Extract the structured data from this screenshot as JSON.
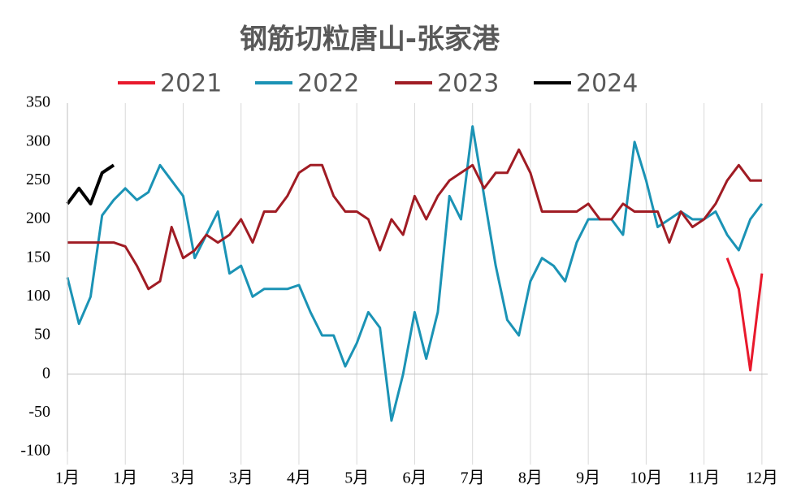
{
  "chart_data": {
    "type": "line",
    "title": "钢筋切粒唐山-张家港",
    "x": [
      0,
      0.2,
      0.4,
      0.6,
      0.8,
      1,
      1.2,
      1.4,
      1.6,
      1.8,
      2,
      2.2,
      2.4,
      2.6,
      2.8,
      3,
      3.2,
      3.4,
      3.6,
      3.8,
      4,
      4.2,
      4.4,
      4.6,
      4.8,
      5,
      5.2,
      5.4,
      5.6,
      5.8,
      6,
      6.2,
      6.4,
      6.6,
      6.8,
      7,
      7.2,
      7.4,
      7.6,
      7.8,
      8,
      8.2,
      8.4,
      8.6,
      8.8,
      9,
      9.2,
      9.4,
      9.6,
      9.8,
      10,
      10.2,
      10.4,
      10.6,
      10.8,
      11,
      11.2,
      11.4,
      11.6,
      11.8,
      12
    ],
    "xlim": [
      0,
      12.1
    ],
    "xticks": [
      {
        "value": 0,
        "label": "1月"
      },
      {
        "value": 1,
        "label": "1月"
      },
      {
        "value": 2,
        "label": "3月"
      },
      {
        "value": 3,
        "label": "3月"
      },
      {
        "value": 4,
        "label": "4月"
      },
      {
        "value": 5,
        "label": "5月"
      },
      {
        "value": 6,
        "label": "6月"
      },
      {
        "value": 7,
        "label": "7月"
      },
      {
        "value": 8,
        "label": "8月"
      },
      {
        "value": 9,
        "label": "9月"
      },
      {
        "value": 10,
        "label": "10月"
      },
      {
        "value": 11,
        "label": "11月"
      },
      {
        "value": 12,
        "label": "12月"
      }
    ],
    "ylim": [
      -100,
      350
    ],
    "yticks": [
      -100,
      -50,
      0,
      50,
      100,
      150,
      200,
      250,
      300,
      350
    ],
    "grid": true,
    "series": [
      {
        "name": "2021",
        "color": "#e8192c",
        "values": [
          null,
          null,
          null,
          null,
          null,
          null,
          null,
          null,
          null,
          null,
          null,
          null,
          null,
          null,
          null,
          null,
          null,
          null,
          null,
          null,
          null,
          null,
          null,
          null,
          null,
          null,
          null,
          null,
          null,
          null,
          null,
          null,
          null,
          null,
          null,
          null,
          null,
          null,
          null,
          null,
          null,
          null,
          null,
          null,
          null,
          null,
          null,
          null,
          null,
          null,
          null,
          null,
          null,
          null,
          null,
          null,
          null,
          150,
          110,
          5,
          130
        ]
      },
      {
        "name": "2022",
        "color": "#1b93b5",
        "values": [
          125,
          65,
          100,
          205,
          225,
          240,
          225,
          235,
          270,
          250,
          230,
          150,
          180,
          210,
          130,
          140,
          100,
          110,
          110,
          110,
          115,
          80,
          50,
          50,
          10,
          40,
          80,
          60,
          -60,
          0,
          80,
          20,
          80,
          230,
          200,
          320,
          230,
          140,
          70,
          50,
          120,
          150,
          140,
          120,
          170,
          200,
          200,
          200,
          180,
          300,
          250,
          190,
          200,
          210,
          200,
          200,
          210,
          180,
          160,
          200,
          220
        ]
      },
      {
        "name": "2023",
        "color": "#a01c24",
        "values": [
          170,
          170,
          170,
          170,
          170,
          165,
          140,
          110,
          120,
          190,
          150,
          160,
          180,
          170,
          180,
          200,
          170,
          210,
          210,
          230,
          260,
          270,
          270,
          230,
          210,
          210,
          200,
          160,
          200,
          180,
          230,
          200,
          230,
          250,
          260,
          270,
          240,
          260,
          260,
          290,
          260,
          210,
          210,
          210,
          210,
          220,
          200,
          200,
          220,
          210,
          210,
          210,
          170,
          210,
          190,
          200,
          220,
          250,
          270,
          250,
          250
        ]
      },
      {
        "name": "2024",
        "color": "#000000",
        "values": [
          220,
          240,
          220,
          260,
          270,
          null,
          null,
          null,
          null,
          null,
          null,
          null,
          null,
          null,
          null,
          null,
          null,
          null,
          null,
          null,
          null,
          null,
          null,
          null,
          null,
          null,
          null,
          null,
          null,
          null,
          null,
          null,
          null,
          null,
          null,
          null,
          null,
          null,
          null,
          null,
          null,
          null,
          null,
          null,
          null,
          null,
          null,
          null,
          null,
          null,
          null,
          null,
          null,
          null,
          null,
          null,
          null,
          null,
          null,
          null,
          null
        ]
      }
    ]
  }
}
